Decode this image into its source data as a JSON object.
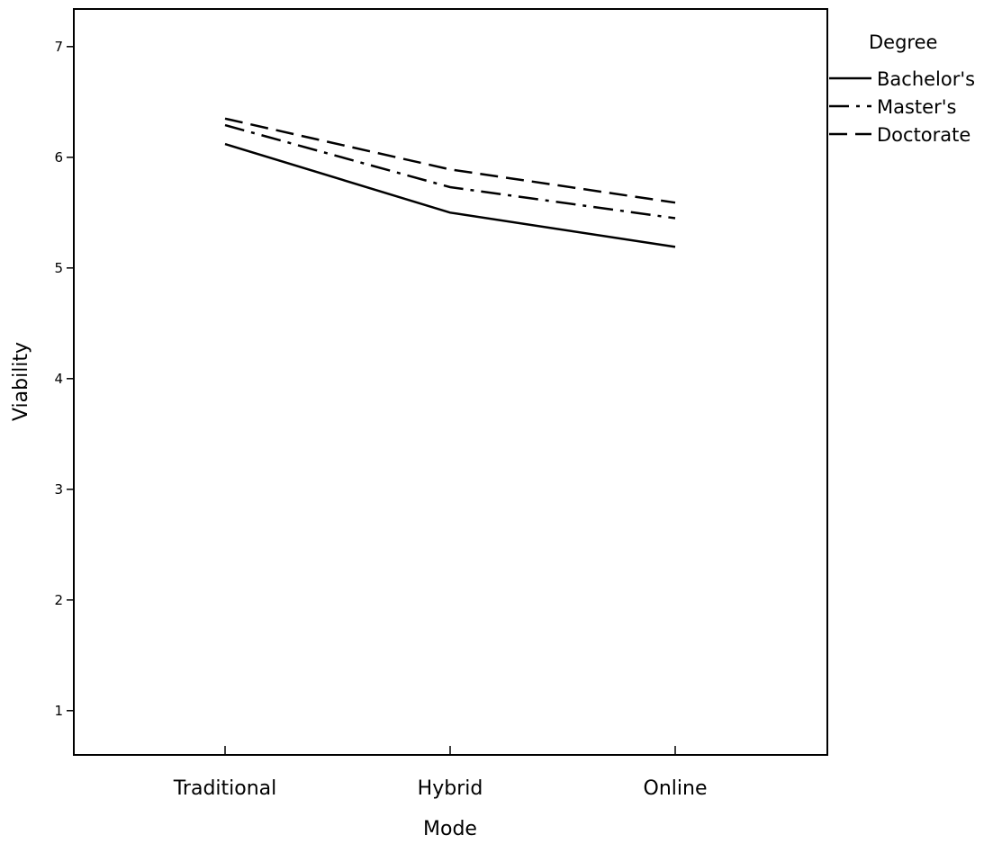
{
  "chart_data": {
    "type": "line",
    "title": "",
    "xlabel": "Mode",
    "ylabel": "Viability",
    "categories": [
      "Traditional",
      "Hybrid",
      "Online"
    ],
    "ylim": [
      0.6,
      7.34
    ],
    "yticks": [
      1,
      2,
      3,
      4,
      5,
      6,
      7
    ],
    "grid": false,
    "legend": {
      "title": "Degree",
      "position": "right"
    },
    "series": [
      {
        "name": "Bachelor's",
        "values": [
          6.12,
          5.5,
          5.19
        ],
        "style": "solid"
      },
      {
        "name": "Master's",
        "values": [
          6.29,
          5.73,
          5.45
        ],
        "style": "dash-dot"
      },
      {
        "name": "Doctorate",
        "values": [
          6.35,
          5.89,
          5.59
        ],
        "style": "dashed"
      }
    ]
  }
}
